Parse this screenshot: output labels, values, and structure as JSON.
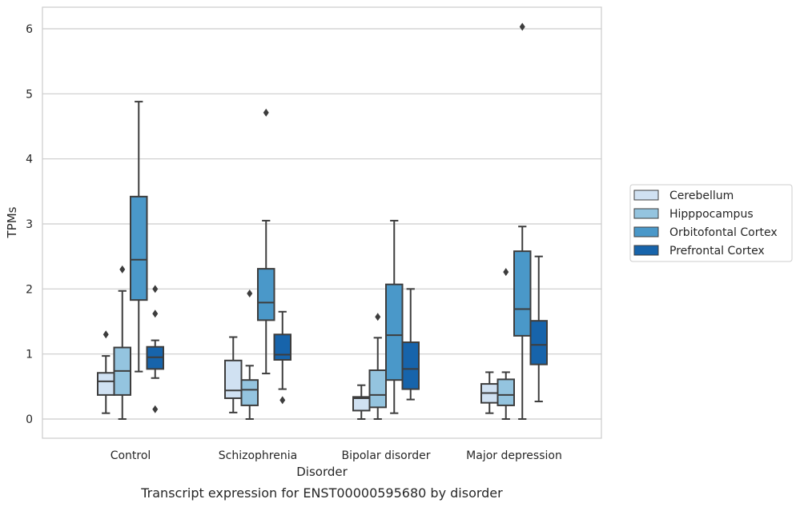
{
  "chart_data": {
    "type": "box",
    "caption": "Transcript expression for ENST00000595680 by disorder",
    "xlabel": "Disorder",
    "ylabel": "TPMs",
    "ylim": [
      -0.3,
      6.35
    ],
    "yticks": [
      "0",
      "1",
      "2",
      "3",
      "4",
      "5",
      "6"
    ],
    "grid": "horizontal",
    "legend_position": "right",
    "categories": [
      "Control",
      "Schizophrenia",
      "Bipolar disorder",
      "Major depression"
    ],
    "series": [
      {
        "name": "Cerebellum",
        "color": "#d0e1f2",
        "boxes": [
          {
            "whisker_low": 0.09,
            "q1": 0.37,
            "median": 0.58,
            "q3": 0.71,
            "whisker_high": 0.97,
            "outliers": [
              1.3
            ]
          },
          {
            "whisker_low": 0.1,
            "q1": 0.32,
            "median": 0.44,
            "q3": 0.9,
            "whisker_high": 1.26,
            "outliers": []
          },
          {
            "whisker_low": 0.0,
            "q1": 0.13,
            "median": 0.32,
            "q3": 0.34,
            "whisker_high": 0.52,
            "outliers": []
          },
          {
            "whisker_low": 0.09,
            "q1": 0.25,
            "median": 0.4,
            "q3": 0.54,
            "whisker_high": 0.72,
            "outliers": []
          }
        ]
      },
      {
        "name": "Hipppocampus",
        "color": "#94c4df",
        "boxes": [
          {
            "whisker_low": 0.0,
            "q1": 0.37,
            "median": 0.74,
            "q3": 1.1,
            "whisker_high": 1.97,
            "outliers": [
              2.3
            ]
          },
          {
            "whisker_low": 0.0,
            "q1": 0.21,
            "median": 0.45,
            "q3": 0.6,
            "whisker_high": 0.82,
            "outliers": [
              1.93
            ]
          },
          {
            "whisker_low": 0.0,
            "q1": 0.18,
            "median": 0.37,
            "q3": 0.75,
            "whisker_high": 1.25,
            "outliers": [
              1.57
            ]
          },
          {
            "whisker_low": 0.0,
            "q1": 0.21,
            "median": 0.37,
            "q3": 0.61,
            "whisker_high": 0.72,
            "outliers": [
              2.26
            ]
          }
        ]
      },
      {
        "name": "Orbitofontal Cortex",
        "color": "#4a98c9",
        "boxes": [
          {
            "whisker_low": 0.73,
            "q1": 1.83,
            "median": 2.45,
            "q3": 3.42,
            "whisker_high": 4.88,
            "outliers": []
          },
          {
            "whisker_low": 0.7,
            "q1": 1.52,
            "median": 1.79,
            "q3": 2.31,
            "whisker_high": 3.05,
            "outliers": [
              4.71
            ]
          },
          {
            "whisker_low": 0.09,
            "q1": 0.6,
            "median": 1.29,
            "q3": 2.07,
            "whisker_high": 3.05,
            "outliers": []
          },
          {
            "whisker_low": 0.0,
            "q1": 1.28,
            "median": 1.69,
            "q3": 2.58,
            "whisker_high": 2.96,
            "outliers": [
              6.03
            ]
          }
        ]
      },
      {
        "name": "Prefrontal Cortex",
        "color": "#1764ab",
        "boxes": [
          {
            "whisker_low": 0.63,
            "q1": 0.77,
            "median": 0.95,
            "q3": 1.11,
            "whisker_high": 1.21,
            "outliers": [
              2.0,
              1.62,
              0.15
            ]
          },
          {
            "whisker_low": 0.46,
            "q1": 0.91,
            "median": 0.99,
            "q3": 1.3,
            "whisker_high": 1.65,
            "outliers": [
              0.29
            ]
          },
          {
            "whisker_low": 0.3,
            "q1": 0.46,
            "median": 0.77,
            "q3": 1.18,
            "whisker_high": 2.0,
            "outliers": []
          },
          {
            "whisker_low": 0.27,
            "q1": 0.84,
            "median": 1.14,
            "q3": 1.51,
            "whisker_high": 2.5,
            "outliers": []
          }
        ]
      }
    ]
  }
}
